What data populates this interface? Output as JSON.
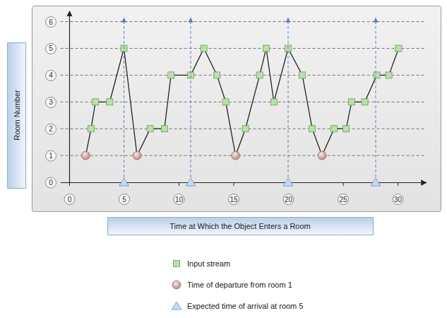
{
  "chart_data": {
    "type": "line",
    "x_label": "Time at Which the Object Enters a Room",
    "y_label": "Room Number",
    "xlim": [
      -0.8,
      32.6
    ],
    "ylim": [
      0,
      6.4
    ],
    "xticks": [
      0,
      5,
      10,
      15,
      20,
      25,
      30
    ],
    "yticks": [
      0,
      1,
      2,
      3,
      4,
      5,
      6
    ],
    "grid": true,
    "legend": "bottom",
    "series": [
      {
        "type": "line",
        "color": "#222222",
        "line_style": "solid",
        "x": [
          1.5,
          2,
          2.4,
          3.7,
          5,
          6.2,
          7.4,
          8.7,
          9.3,
          11.1,
          12.3,
          13.5,
          14.3,
          15.2,
          16.1,
          17.4,
          18,
          18.7,
          20,
          21.3,
          22.2,
          23.1,
          24.2,
          25.3,
          25.8,
          27,
          28.1,
          29.2,
          30.1
        ],
        "values": [
          1,
          2,
          3,
          3,
          5,
          1,
          2,
          2,
          4,
          4,
          5,
          4,
          3,
          1,
          2,
          4,
          5,
          3,
          5,
          4,
          2,
          1,
          2,
          2,
          3,
          3,
          4,
          4,
          5
        ]
      },
      {
        "name": "Input stream",
        "type": "scatter",
        "marker": "square",
        "color": "#b9e0a9",
        "x": [
          2,
          2.4,
          3.7,
          5,
          7.4,
          8.7,
          9.3,
          11.1,
          12.3,
          13.5,
          14.3,
          16.1,
          17.4,
          18,
          18.7,
          20,
          21.3,
          22.2,
          24.2,
          25.3,
          25.8,
          27,
          28.1,
          29.2,
          30.1
        ],
        "values": [
          2,
          3,
          3,
          5,
          2,
          2,
          4,
          4,
          5,
          4,
          3,
          2,
          4,
          5,
          3,
          5,
          4,
          2,
          2,
          2,
          3,
          3,
          4,
          4,
          5
        ]
      },
      {
        "name": "Time of departure from room 1",
        "type": "scatter",
        "marker": "circle",
        "color": "#d9a9a9",
        "x": [
          1.5,
          6.2,
          15.2,
          23.1
        ],
        "values": [
          1,
          1,
          1,
          1
        ]
      },
      {
        "name": "Expected time of arrival at room 5",
        "type": "scatter",
        "marker": "triangle",
        "color": "#c4daf0",
        "x": [
          5,
          11.1,
          20,
          28
        ],
        "values": [
          0,
          0,
          0,
          0
        ]
      }
    ]
  }
}
